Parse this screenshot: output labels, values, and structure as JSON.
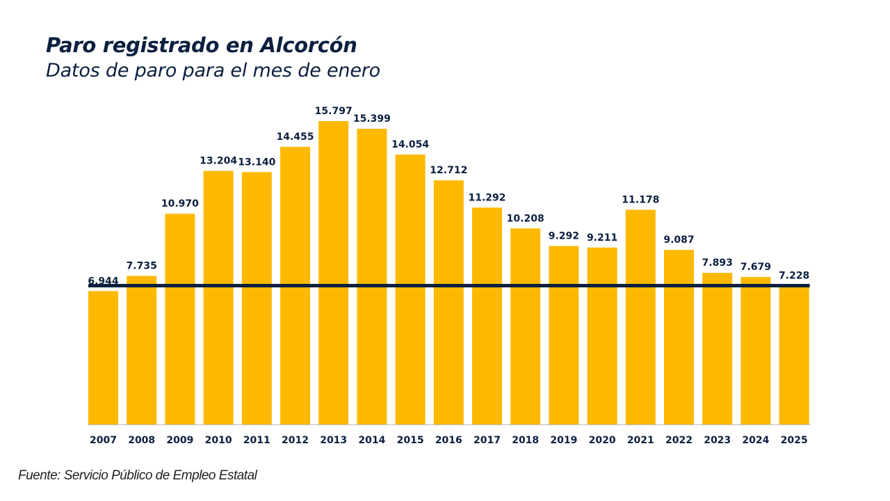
{
  "title": "Paro registrado en Alcorcón",
  "subtitle": "Datos de paro para el mes de enero",
  "source": "Fuente: Servicio Público de Empleo Estatal",
  "colors": {
    "bar": "#FDB900",
    "reference_line": "#0B1F3F",
    "text": "#0B1F3F"
  },
  "chart_data": {
    "type": "bar",
    "title": "Paro registrado en Alcorcón",
    "subtitle": "Datos de paro para el mes de enero",
    "categories": [
      "2007",
      "2008",
      "2009",
      "2010",
      "2011",
      "2012",
      "2013",
      "2014",
      "2015",
      "2016",
      "2017",
      "2018",
      "2019",
      "2020",
      "2021",
      "2022",
      "2023",
      "2024",
      "2025"
    ],
    "values": [
      6944,
      7735,
      10970,
      13204,
      13140,
      14455,
      15797,
      15399,
      14054,
      12712,
      11292,
      10208,
      9292,
      9211,
      11178,
      9087,
      7893,
      7679,
      7228
    ],
    "labels": [
      "6.944",
      "7.735",
      "10.970",
      "13.204",
      "13.140",
      "14.455",
      "15.797",
      "15.399",
      "14.054",
      "12.712",
      "11.292",
      "10.208",
      "9.292",
      "9.211",
      "11.178",
      "9.087",
      "7.893",
      "7.679",
      "7.228"
    ],
    "reference_line": 7228,
    "ylim": [
      0,
      16000
    ],
    "grid": false,
    "legend": "none"
  }
}
